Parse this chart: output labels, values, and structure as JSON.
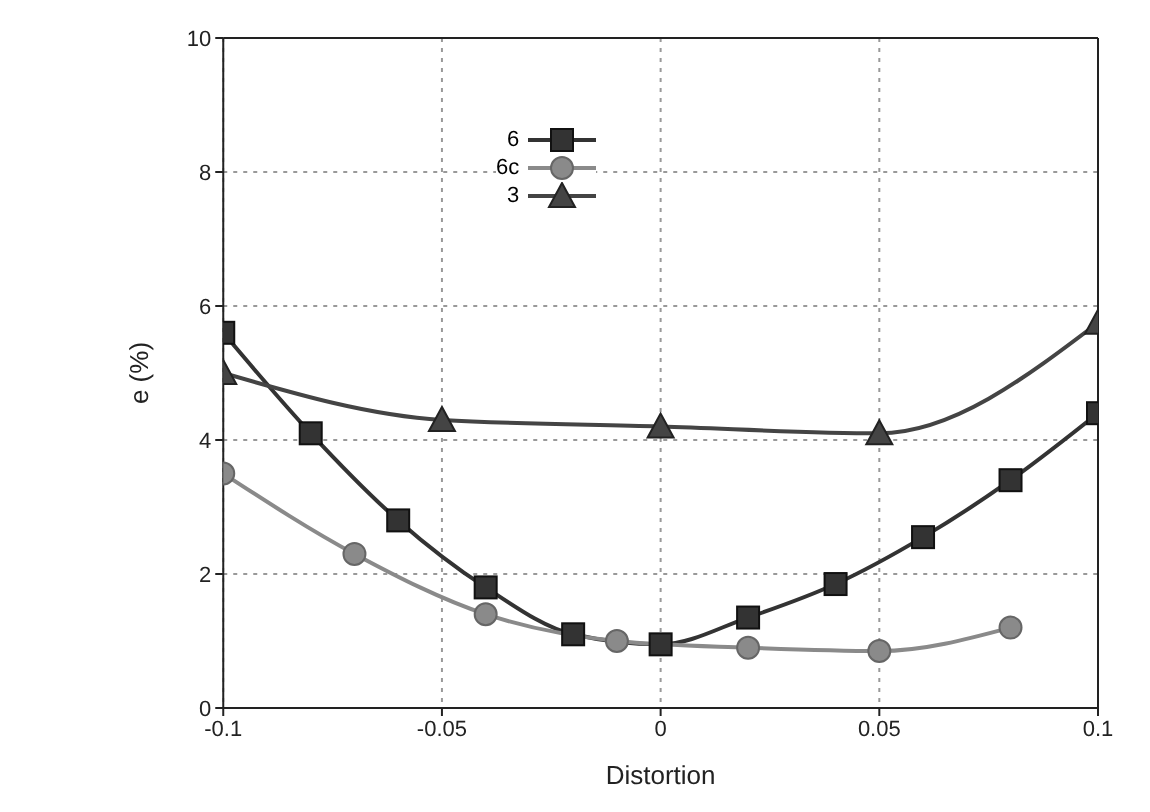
{
  "chart_data": {
    "type": "line",
    "xlabel": "Distortion",
    "ylabel": "e (%)",
    "xlim": [
      -0.1,
      0.1
    ],
    "xticks": [
      -0.1,
      -0.05,
      0,
      0.05,
      0.1
    ],
    "ylim": [
      0,
      10
    ],
    "yticks": [
      0,
      2,
      4,
      6,
      8,
      10
    ],
    "grid": true,
    "legend": "top",
    "series": [
      {
        "name": "6",
        "color": "#333333",
        "marker": "square",
        "x": [
          -0.1,
          -0.08,
          -0.06,
          -0.04,
          -0.02,
          0,
          0.02,
          0.04,
          0.06,
          0.08,
          0.1
        ],
        "values": [
          5.6,
          4.1,
          2.8,
          1.8,
          1.1,
          0.95,
          1.35,
          1.85,
          2.55,
          3.4,
          4.4
        ]
      },
      {
        "name": "6c",
        "color": "#8a8a8a",
        "marker": "circle",
        "x": [
          -0.1,
          -0.07,
          -0.04,
          -0.01,
          0.02,
          0.05,
          0.08
        ],
        "values": [
          3.5,
          2.3,
          1.4,
          1.0,
          0.9,
          0.85,
          1.2
        ]
      },
      {
        "name": "3",
        "color": "#444444",
        "marker": "triangle",
        "x": [
          -0.1,
          -0.05,
          0,
          0.05,
          0.1
        ],
        "values": [
          5.0,
          4.3,
          4.2,
          4.1,
          5.75
        ]
      }
    ]
  }
}
